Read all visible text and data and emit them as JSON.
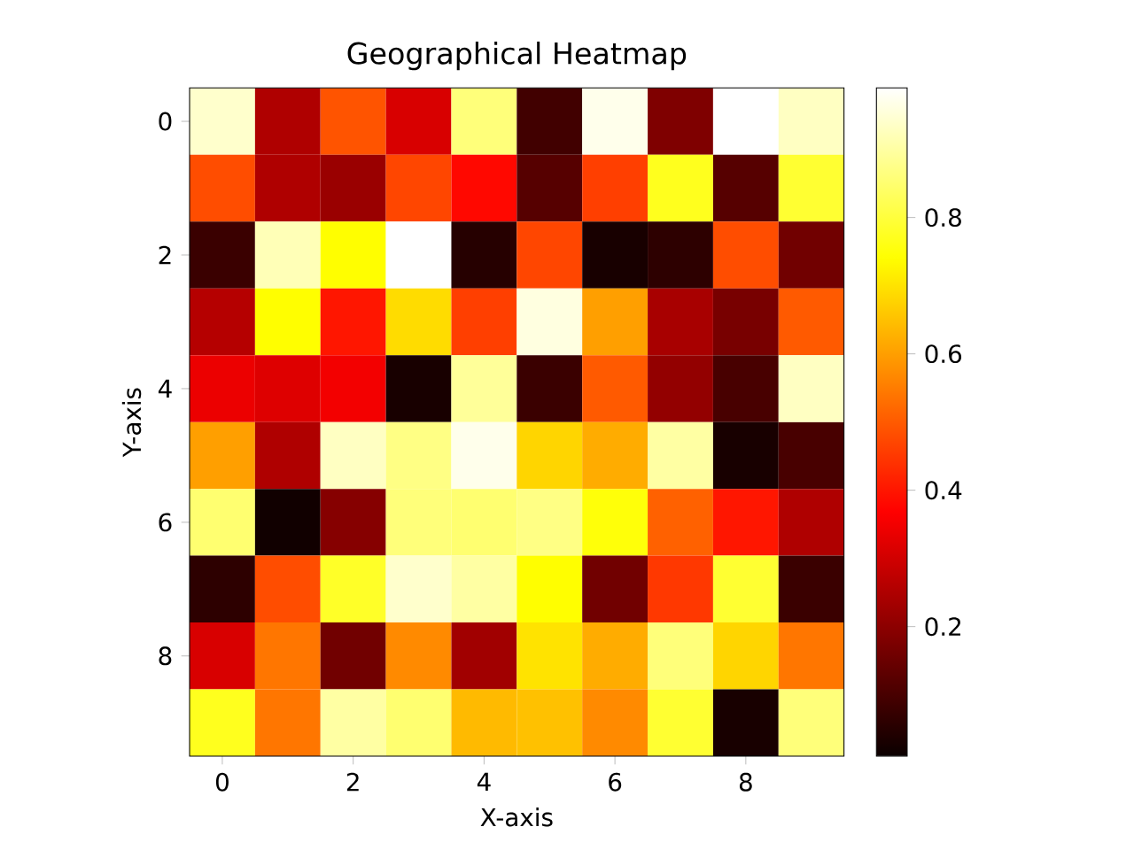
{
  "chart_data": {
    "type": "heatmap",
    "title": "Geographical Heatmap",
    "xlabel": "X-axis",
    "ylabel": "Y-axis",
    "categories": [
      "0",
      null,
      "2",
      null,
      "4",
      null,
      "6",
      null,
      "8",
      null
    ],
    "y_categories": [
      "0",
      null,
      "2",
      null,
      "4",
      null,
      "6",
      null,
      "8",
      null
    ],
    "cells": [
      [
        0.94,
        0.25,
        0.49,
        0.31,
        0.86,
        0.09,
        0.97,
        0.18,
        0.99,
        0.93
      ],
      [
        0.48,
        0.25,
        0.22,
        0.47,
        0.38,
        0.12,
        0.46,
        0.77,
        0.12,
        0.79
      ],
      [
        0.08,
        0.92,
        0.74,
        0.99,
        0.05,
        0.47,
        0.03,
        0.06,
        0.48,
        0.16
      ],
      [
        0.26,
        0.74,
        0.4,
        0.69,
        0.46,
        0.96,
        0.6,
        0.24,
        0.17,
        0.5
      ],
      [
        0.34,
        0.32,
        0.35,
        0.03,
        0.89,
        0.08,
        0.5,
        0.21,
        0.1,
        0.93
      ],
      [
        0.6,
        0.25,
        0.93,
        0.87,
        0.97,
        0.68,
        0.62,
        0.9,
        0.03,
        0.1
      ],
      [
        0.85,
        0.02,
        0.19,
        0.86,
        0.85,
        0.87,
        0.75,
        0.51,
        0.4,
        0.25
      ],
      [
        0.06,
        0.48,
        0.78,
        0.94,
        0.9,
        0.74,
        0.16,
        0.45,
        0.79,
        0.08
      ],
      [
        0.31,
        0.54,
        0.16,
        0.57,
        0.23,
        0.7,
        0.62,
        0.86,
        0.68,
        0.54
      ],
      [
        0.77,
        0.54,
        0.9,
        0.85,
        0.64,
        0.65,
        0.57,
        0.79,
        0.03,
        0.86
      ]
    ],
    "clim": [
      0.01,
      0.99
    ],
    "cticks": [
      0.2,
      0.4,
      0.6,
      0.8
    ]
  }
}
